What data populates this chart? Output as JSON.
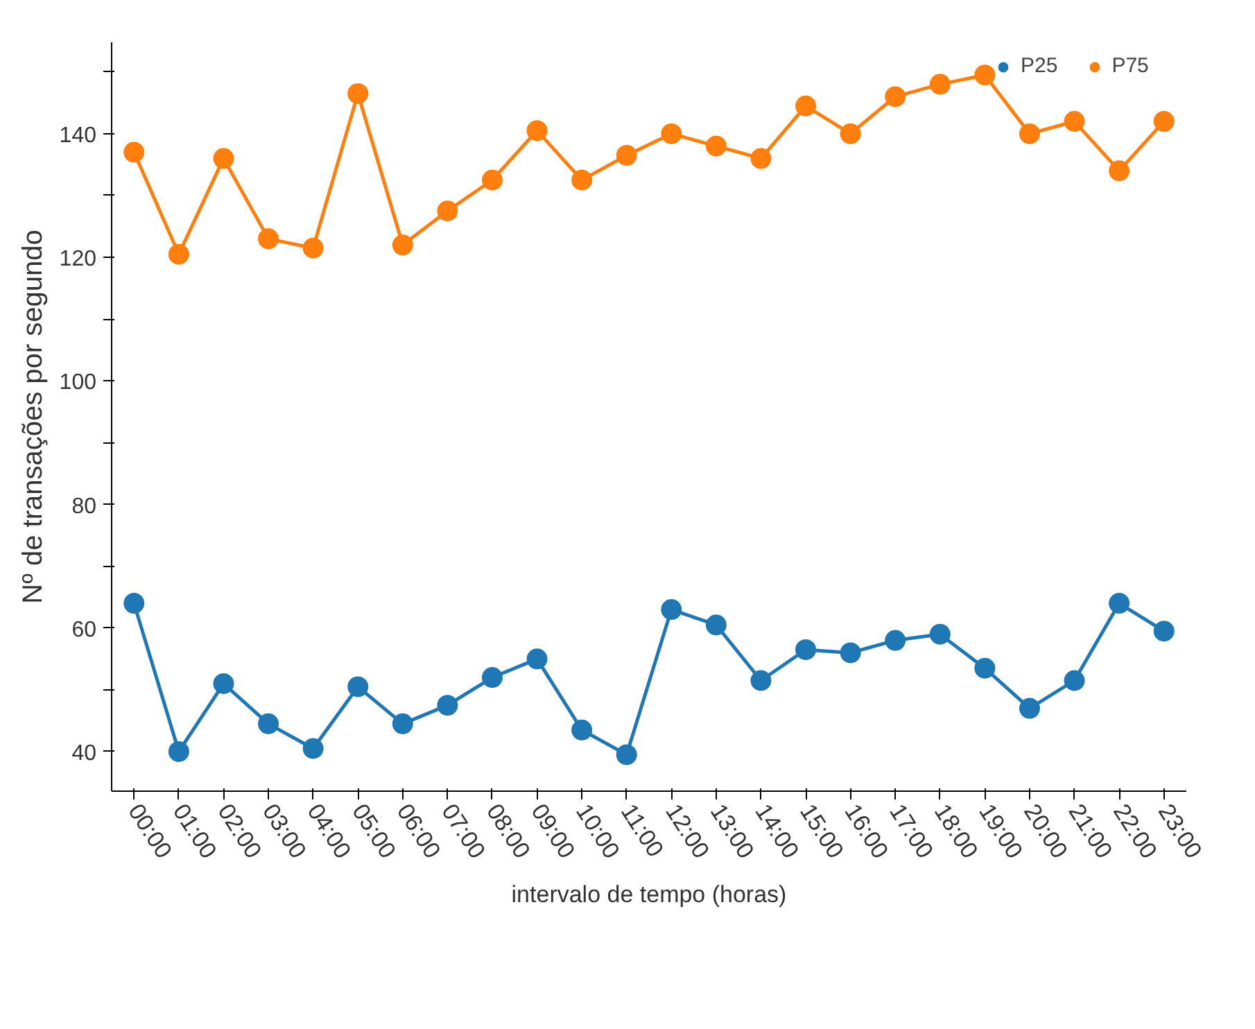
{
  "chart_data": {
    "type": "line",
    "xlabel": "intervalo de tempo (horas)",
    "ylabel": "Nº de transações por segundo",
    "categories": [
      "00:00",
      "01:00",
      "02:00",
      "03:00",
      "04:00",
      "05:00",
      "06:00",
      "07:00",
      "08:00",
      "09:00",
      "10:00",
      "11:00",
      "12:00",
      "13:00",
      "14:00",
      "15:00",
      "16:00",
      "17:00",
      "18:00",
      "19:00",
      "20:00",
      "21:00",
      "22:00",
      "23:00"
    ],
    "series": [
      {
        "name": "P25",
        "color": "#1f77b4",
        "values": [
          64,
          40,
          51,
          44.5,
          40.5,
          50.5,
          44.5,
          47.5,
          52,
          55,
          43.5,
          39.5,
          63,
          60.5,
          51.5,
          56.5,
          56,
          58,
          59,
          53.5,
          47,
          51.5,
          64,
          59.5
        ]
      },
      {
        "name": "P75",
        "color": "#ff7f0e",
        "values": [
          137,
          120.5,
          136,
          123,
          121.5,
          146.5,
          122,
          127.5,
          132.5,
          140.5,
          132.5,
          136.5,
          140,
          138,
          136,
          144.5,
          140,
          146,
          148,
          149.5,
          140,
          142,
          134,
          142
        ]
      }
    ],
    "ylim": [
      33.6,
      154.8
    ],
    "yticks": [
      40,
      {
        "value": 50,
        "label": null
      },
      60,
      {
        "value": 70,
        "label": null
      },
      80,
      {
        "value": 90,
        "label": null
      },
      100,
      {
        "value": 110,
        "label": null
      },
      120,
      {
        "value": 130,
        "label": null
      },
      140,
      {
        "value": 150,
        "label": null
      }
    ],
    "marker": "circle",
    "line_style": "solid",
    "legend": "top right",
    "grid": false
  }
}
